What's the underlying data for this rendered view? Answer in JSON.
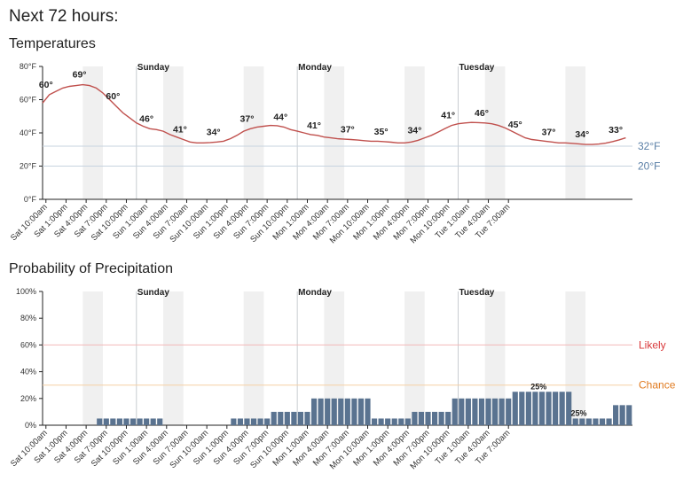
{
  "page": {
    "title": "Next 72 hours:"
  },
  "colors": {
    "temp_line": "#c0504d",
    "bar": "#5a7390",
    "likely": "#d9383a",
    "chance": "#e07a1f",
    "ref_blue": "#5a7fa6",
    "shade": "#f0f0f0",
    "grid": "#dde3ea"
  },
  "chart_data": [
    {
      "type": "line",
      "title": "Temperatures",
      "x": [
        "Sat 10:00am",
        "Sat 1:00pm",
        "Sat 4:00pm",
        "Sat 7:00pm",
        "Sat 10:00pm",
        "Sun 1:00am",
        "Sun 4:00am",
        "Sun 7:00am",
        "Sun 10:00am",
        "Sun 1:00pm",
        "Sun 4:00pm",
        "Sun 7:00pm",
        "Sun 10:00pm",
        "Mon 1:00am",
        "Mon 4:00am",
        "Mon 7:00am",
        "Mon 10:00am",
        "Mon 1:00pm",
        "Mon 4:00pm",
        "Mon 7:00pm",
        "Mon 10:00pm",
        "Tue 1:00am",
        "Tue 4:00am",
        "Tue 7:00am"
      ],
      "hourly_values": [
        58,
        63,
        65,
        67,
        68,
        68.5,
        69,
        68.5,
        67,
        64,
        60,
        56,
        52,
        49,
        46,
        44,
        42.5,
        42,
        41,
        39,
        37.5,
        36,
        34.5,
        34,
        34,
        34.2,
        34.5,
        35,
        36.5,
        38.5,
        41,
        42.5,
        43.5,
        44,
        44.5,
        44.3,
        43.5,
        42,
        41,
        40,
        39,
        38.5,
        37.5,
        37,
        36.5,
        36.2,
        36,
        35.7,
        35.3,
        35,
        35,
        34.7,
        34.4,
        34,
        34,
        34.5,
        35.5,
        37,
        38.5,
        40.5,
        42.5,
        44.5,
        45.5,
        46,
        46.3,
        46.2,
        46,
        45.5,
        44.5,
        43,
        41,
        39,
        37,
        36,
        35.5,
        35,
        34.5,
        34,
        34,
        33.7,
        33.4,
        33,
        33,
        33.3,
        33.8,
        34.7,
        35.8,
        37
      ],
      "value_labels": [
        {
          "x": "Sat 10:00am",
          "text": "60°"
        },
        {
          "x": "Sat 1:00pm",
          "text": "69°"
        },
        {
          "x": "Sat 4:00pm",
          "text": "60°"
        },
        {
          "x": "Sat 7:00pm",
          "text": "46°"
        },
        {
          "x": "Sat 10:00pm",
          "text": "41°"
        },
        {
          "x": "Sun 1:00am",
          "text": "34°"
        },
        {
          "x": "Sun 4:00am",
          "text": "37°"
        },
        {
          "x": "Sun 7:00am",
          "text": "44°"
        },
        {
          "x": "Sun 10:00am",
          "text": "41°"
        },
        {
          "x": "Sun 1:00pm",
          "text": "37°"
        },
        {
          "x": "Sun 4:00pm",
          "text": "35°"
        },
        {
          "x": "Sun 7:00pm",
          "text": "34°"
        },
        {
          "x": "Sun 10:00pm",
          "text": "41°"
        },
        {
          "x": "Mon 1:00am",
          "text": "46°"
        },
        {
          "x": "Mon 4:00am",
          "text": "45°"
        },
        {
          "x": "Mon 7:00am",
          "text": "37°"
        },
        {
          "x": "Mon 10:00am",
          "text": "34°"
        },
        {
          "x": "Mon 1:00pm",
          "text": "33°"
        }
      ],
      "reference_lines": [
        {
          "value": 32,
          "label": "32°F"
        },
        {
          "value": 20,
          "label": "20°F"
        }
      ],
      "day_labels": [
        "Sunday",
        "Monday",
        "Tuesday"
      ],
      "yticks": [
        "0°F",
        "20°F",
        "40°F",
        "60°F",
        "80°F"
      ],
      "ylim": [
        0,
        80
      ]
    },
    {
      "type": "bar",
      "title": "Probability of Precipitation",
      "x": [
        "Sat 10:00am",
        "Sat 1:00pm",
        "Sat 4:00pm",
        "Sat 7:00pm",
        "Sat 10:00pm",
        "Sun 1:00am",
        "Sun 4:00am",
        "Sun 7:00am",
        "Sun 10:00am",
        "Sun 1:00pm",
        "Sun 4:00pm",
        "Sun 7:00pm",
        "Sun 10:00pm",
        "Mon 1:00am",
        "Mon 4:00am",
        "Mon 7:00am",
        "Mon 10:00am",
        "Mon 1:00pm",
        "Mon 4:00pm",
        "Mon 7:00pm",
        "Mon 10:00pm",
        "Tue 1:00am",
        "Tue 4:00am",
        "Tue 7:00am"
      ],
      "hourly_values": [
        0,
        0,
        0,
        0,
        0,
        0,
        0,
        0,
        5,
        5,
        5,
        5,
        5,
        5,
        5,
        5,
        5,
        5,
        0,
        0,
        0,
        0,
        0,
        0,
        0,
        0,
        0,
        0,
        5,
        5,
        5,
        5,
        5,
        5,
        10,
        10,
        10,
        10,
        10,
        10,
        20,
        20,
        20,
        20,
        20,
        20,
        20,
        20,
        20,
        5,
        5,
        5,
        5,
        5,
        5,
        10,
        10,
        10,
        10,
        10,
        10,
        20,
        20,
        20,
        20,
        20,
        20,
        20,
        20,
        20,
        25,
        25,
        25,
        25,
        25,
        25,
        25,
        25,
        25,
        5,
        5,
        5,
        5,
        5,
        5,
        15,
        15,
        15
      ],
      "value_labels": [
        {
          "x": "Mon 7:00pm",
          "text": "25%"
        },
        {
          "x": "Mon 10:00pm",
          "text": "25%"
        }
      ],
      "reference_lines": [
        {
          "value": 60,
          "label": "Likely"
        },
        {
          "value": 30,
          "label": "Chance"
        }
      ],
      "day_labels": [
        "Sunday",
        "Monday",
        "Tuesday"
      ],
      "yticks": [
        "0%",
        "20%",
        "40%",
        "60%",
        "80%",
        "100%"
      ],
      "ylim": [
        0,
        100
      ]
    }
  ]
}
